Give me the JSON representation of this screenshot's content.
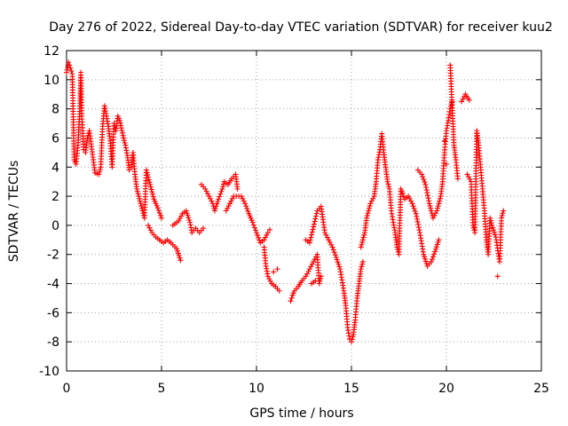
{
  "chart_data": {
    "type": "scatter",
    "title": "Day 276 of 2022, Sidereal Day-to-day VTEC variation (SDTVAR) for receiver kuu2",
    "xlabel": "GPS time / hours",
    "ylabel": "SDTVAR / TECUs",
    "xlim": [
      0,
      25
    ],
    "ylim": [
      -10,
      12
    ],
    "xticks": [
      0,
      5,
      10,
      15,
      20,
      25
    ],
    "yticks": [
      -10,
      -8,
      -6,
      -4,
      -2,
      0,
      2,
      4,
      6,
      8,
      10,
      12
    ],
    "grid": true,
    "marker": "+",
    "color": "#ff0000",
    "series": [
      {
        "name": "SDTVAR",
        "points": [
          [
            0.0,
            10.5
          ],
          [
            0.1,
            11.2
          ],
          [
            0.2,
            10.8
          ],
          [
            0.3,
            10.4
          ],
          [
            0.4,
            4.5
          ],
          [
            0.5,
            4.2
          ],
          [
            0.6,
            5.5
          ],
          [
            0.7,
            8.0
          ],
          [
            0.75,
            10.5
          ],
          [
            0.8,
            7.5
          ],
          [
            0.85,
            6.5
          ],
          [
            0.9,
            5.2
          ],
          [
            1.0,
            5.0
          ],
          [
            1.1,
            6.0
          ],
          [
            1.2,
            6.5
          ],
          [
            1.5,
            3.6
          ],
          [
            1.7,
            3.5
          ],
          [
            1.8,
            4.0
          ],
          [
            1.9,
            6.8
          ],
          [
            2.0,
            8.2
          ],
          [
            2.1,
            7.5
          ],
          [
            2.2,
            6.8
          ],
          [
            2.3,
            5.8
          ],
          [
            2.4,
            4.0
          ],
          [
            2.5,
            7.0
          ],
          [
            2.6,
            6.5
          ],
          [
            2.7,
            7.5
          ],
          [
            2.8,
            7.2
          ],
          [
            3.0,
            6.0
          ],
          [
            3.1,
            5.5
          ],
          [
            3.2,
            4.8
          ],
          [
            3.3,
            3.8
          ],
          [
            3.4,
            4.0
          ],
          [
            3.5,
            5.0
          ],
          [
            3.6,
            3.5
          ],
          [
            3.7,
            2.5
          ],
          [
            3.8,
            2.0
          ],
          [
            3.9,
            1.5
          ],
          [
            4.0,
            1.0
          ],
          [
            4.1,
            0.5
          ],
          [
            4.2,
            3.8
          ],
          [
            4.4,
            2.8
          ],
          [
            4.6,
            1.8
          ],
          [
            4.8,
            1.2
          ],
          [
            5.0,
            0.5
          ],
          [
            4.3,
            0.0
          ],
          [
            4.5,
            -0.5
          ],
          [
            4.7,
            -0.8
          ],
          [
            4.9,
            -1.0
          ],
          [
            5.1,
            -1.2
          ],
          [
            5.3,
            -1.0
          ],
          [
            5.5,
            -1.2
          ],
          [
            5.8,
            -1.6
          ],
          [
            6.0,
            -2.4
          ],
          [
            5.6,
            0.0
          ],
          [
            5.9,
            0.3
          ],
          [
            6.1,
            0.8
          ],
          [
            6.3,
            1.0
          ],
          [
            6.5,
            0.2
          ],
          [
            6.6,
            -0.5
          ],
          [
            6.8,
            -0.2
          ],
          [
            7.0,
            -0.5
          ],
          [
            7.2,
            -0.2
          ],
          [
            7.1,
            2.8
          ],
          [
            7.3,
            2.5
          ],
          [
            7.5,
            2.0
          ],
          [
            7.7,
            1.5
          ],
          [
            7.8,
            1.0
          ],
          [
            8.0,
            1.8
          ],
          [
            8.2,
            2.5
          ],
          [
            8.3,
            3.0
          ],
          [
            8.5,
            2.8
          ],
          [
            8.7,
            3.2
          ],
          [
            8.9,
            3.5
          ],
          [
            9.0,
            2.5
          ],
          [
            8.6,
            1.5
          ],
          [
            8.4,
            1.0
          ],
          [
            8.8,
            2.0
          ],
          [
            9.2,
            2.0
          ],
          [
            9.4,
            1.5
          ],
          [
            9.6,
            0.8
          ],
          [
            9.8,
            0.2
          ],
          [
            10.0,
            -0.5
          ],
          [
            10.2,
            -1.2
          ],
          [
            10.4,
            -1.0
          ],
          [
            10.6,
            -0.5
          ],
          [
            10.7,
            -0.3
          ],
          [
            10.4,
            -1.5
          ],
          [
            10.5,
            -2.8
          ],
          [
            10.6,
            -3.5
          ],
          [
            10.8,
            -4.0
          ],
          [
            11.0,
            -4.2
          ],
          [
            11.2,
            -4.5
          ],
          [
            11.1,
            -3.0
          ],
          [
            10.9,
            -3.2
          ],
          [
            11.8,
            -5.2
          ],
          [
            11.9,
            -4.8
          ],
          [
            12.0,
            -4.5
          ],
          [
            12.2,
            -4.2
          ],
          [
            12.4,
            -3.8
          ],
          [
            12.6,
            -3.5
          ],
          [
            12.8,
            -3.0
          ],
          [
            13.0,
            -2.5
          ],
          [
            13.2,
            -2.0
          ],
          [
            13.3,
            -4.0
          ],
          [
            13.4,
            -3.5
          ],
          [
            12.9,
            -4.0
          ],
          [
            13.1,
            -3.8
          ],
          [
            12.6,
            -1.0
          ],
          [
            12.8,
            -1.2
          ],
          [
            13.2,
            1.0
          ],
          [
            13.4,
            1.3
          ],
          [
            13.6,
            -0.5
          ],
          [
            13.8,
            -1.0
          ],
          [
            14.0,
            -1.5
          ],
          [
            14.2,
            -2.2
          ],
          [
            14.4,
            -3.0
          ],
          [
            14.6,
            -4.5
          ],
          [
            14.7,
            -5.5
          ],
          [
            14.8,
            -7.0
          ],
          [
            14.9,
            -7.8
          ],
          [
            15.0,
            -8.0
          ],
          [
            15.1,
            -7.5
          ],
          [
            15.2,
            -6.5
          ],
          [
            15.3,
            -5.0
          ],
          [
            15.4,
            -4.0
          ],
          [
            15.5,
            -3.0
          ],
          [
            15.6,
            -2.5
          ],
          [
            15.5,
            -1.5
          ],
          [
            15.7,
            -0.5
          ],
          [
            15.8,
            0.5
          ],
          [
            15.9,
            1.0
          ],
          [
            16.0,
            1.5
          ],
          [
            16.2,
            2.0
          ],
          [
            16.3,
            3.0
          ],
          [
            16.4,
            4.5
          ],
          [
            16.5,
            5.2
          ],
          [
            16.6,
            6.3
          ],
          [
            16.7,
            5.0
          ],
          [
            16.8,
            4.0
          ],
          [
            16.9,
            3.0
          ],
          [
            17.0,
            2.5
          ],
          [
            17.1,
            1.0
          ],
          [
            17.2,
            0.2
          ],
          [
            17.3,
            -0.5
          ],
          [
            17.4,
            -1.5
          ],
          [
            17.5,
            -2.0
          ],
          [
            17.6,
            2.5
          ],
          [
            17.7,
            2.2
          ],
          [
            17.8,
            1.8
          ],
          [
            18.0,
            2.0
          ],
          [
            18.2,
            1.5
          ],
          [
            18.4,
            0.8
          ],
          [
            18.6,
            -0.5
          ],
          [
            18.8,
            -2.0
          ],
          [
            19.0,
            -2.8
          ],
          [
            19.2,
            -2.5
          ],
          [
            19.4,
            -1.8
          ],
          [
            19.6,
            -1.0
          ],
          [
            18.5,
            3.8
          ],
          [
            18.7,
            3.5
          ],
          [
            18.9,
            2.8
          ],
          [
            19.1,
            1.5
          ],
          [
            19.3,
            0.5
          ],
          [
            19.5,
            1.0
          ],
          [
            19.7,
            2.0
          ],
          [
            19.8,
            3.0
          ],
          [
            19.9,
            5.0
          ],
          [
            20.0,
            6.5
          ],
          [
            20.1,
            7.2
          ],
          [
            20.2,
            8.0
          ],
          [
            20.3,
            8.5
          ],
          [
            20.2,
            11.0
          ],
          [
            20.4,
            5.5
          ],
          [
            20.5,
            4.5
          ],
          [
            20.6,
            3.2
          ],
          [
            20.0,
            4.2
          ],
          [
            19.9,
            5.8
          ],
          [
            20.8,
            8.5
          ],
          [
            21.0,
            9.0
          ],
          [
            21.2,
            8.6
          ],
          [
            21.1,
            3.5
          ],
          [
            21.3,
            3.0
          ],
          [
            21.4,
            0.0
          ],
          [
            21.5,
            -0.5
          ],
          [
            21.6,
            6.5
          ],
          [
            21.7,
            5.5
          ],
          [
            21.8,
            4.0
          ],
          [
            21.9,
            2.5
          ],
          [
            22.0,
            1.0
          ],
          [
            22.1,
            -1.0
          ],
          [
            22.2,
            -2.0
          ],
          [
            22.3,
            0.5
          ],
          [
            22.4,
            0.0
          ],
          [
            22.6,
            -0.8
          ],
          [
            22.8,
            -2.5
          ],
          [
            22.9,
            0.5
          ],
          [
            23.0,
            1.0
          ],
          [
            22.7,
            -3.5
          ]
        ]
      }
    ]
  }
}
